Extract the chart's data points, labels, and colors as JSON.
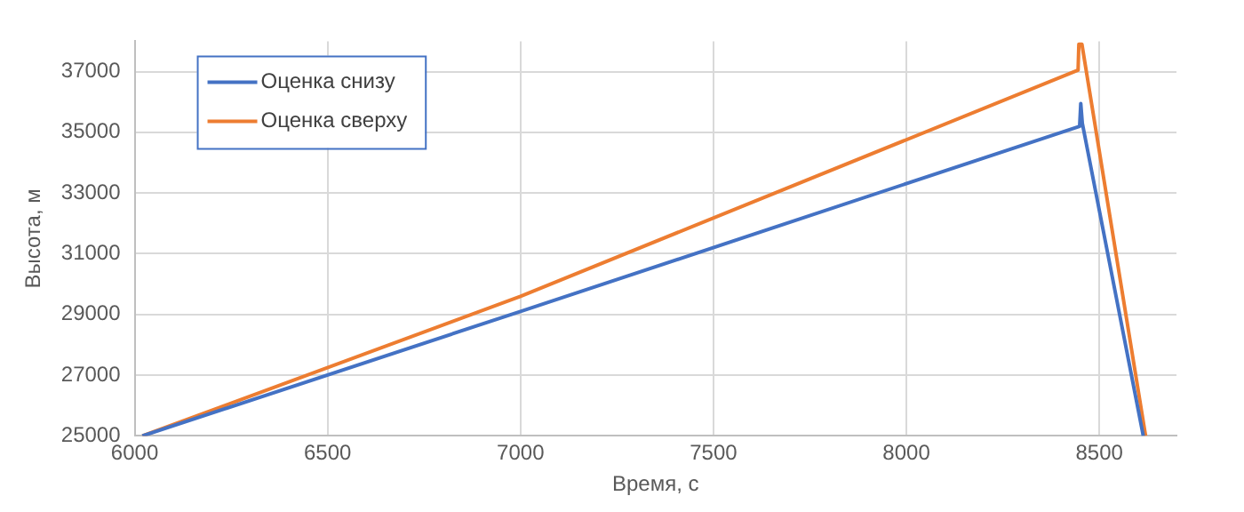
{
  "chart_data": {
    "type": "line",
    "xlabel": "Время, с",
    "ylabel": "Высота, м",
    "series": [
      {
        "name": "Оценка снизу",
        "color": "#4472c4",
        "x": [
          6020,
          7000,
          8449,
          8452,
          8456,
          8614
        ],
        "values": [
          25000,
          29100,
          35200,
          35950,
          35300,
          25000
        ]
      },
      {
        "name": "Оценка сверху",
        "color": "#ed7d31",
        "x": [
          6020,
          7000,
          8445,
          8447,
          8455,
          8620
        ],
        "values": [
          25000,
          29600,
          37050,
          37900,
          37900,
          25000
        ]
      }
    ],
    "xlim": [
      6000,
      8700
    ],
    "xticks": [
      6000,
      6500,
      7000,
      7500,
      8000,
      8500
    ],
    "ylim": [
      25000,
      38000
    ],
    "yticks": [
      25000,
      27000,
      29000,
      31000,
      33000,
      35000,
      37000
    ],
    "grid": true,
    "legend": "top left",
    "marker": "none",
    "line_style": "solid"
  }
}
